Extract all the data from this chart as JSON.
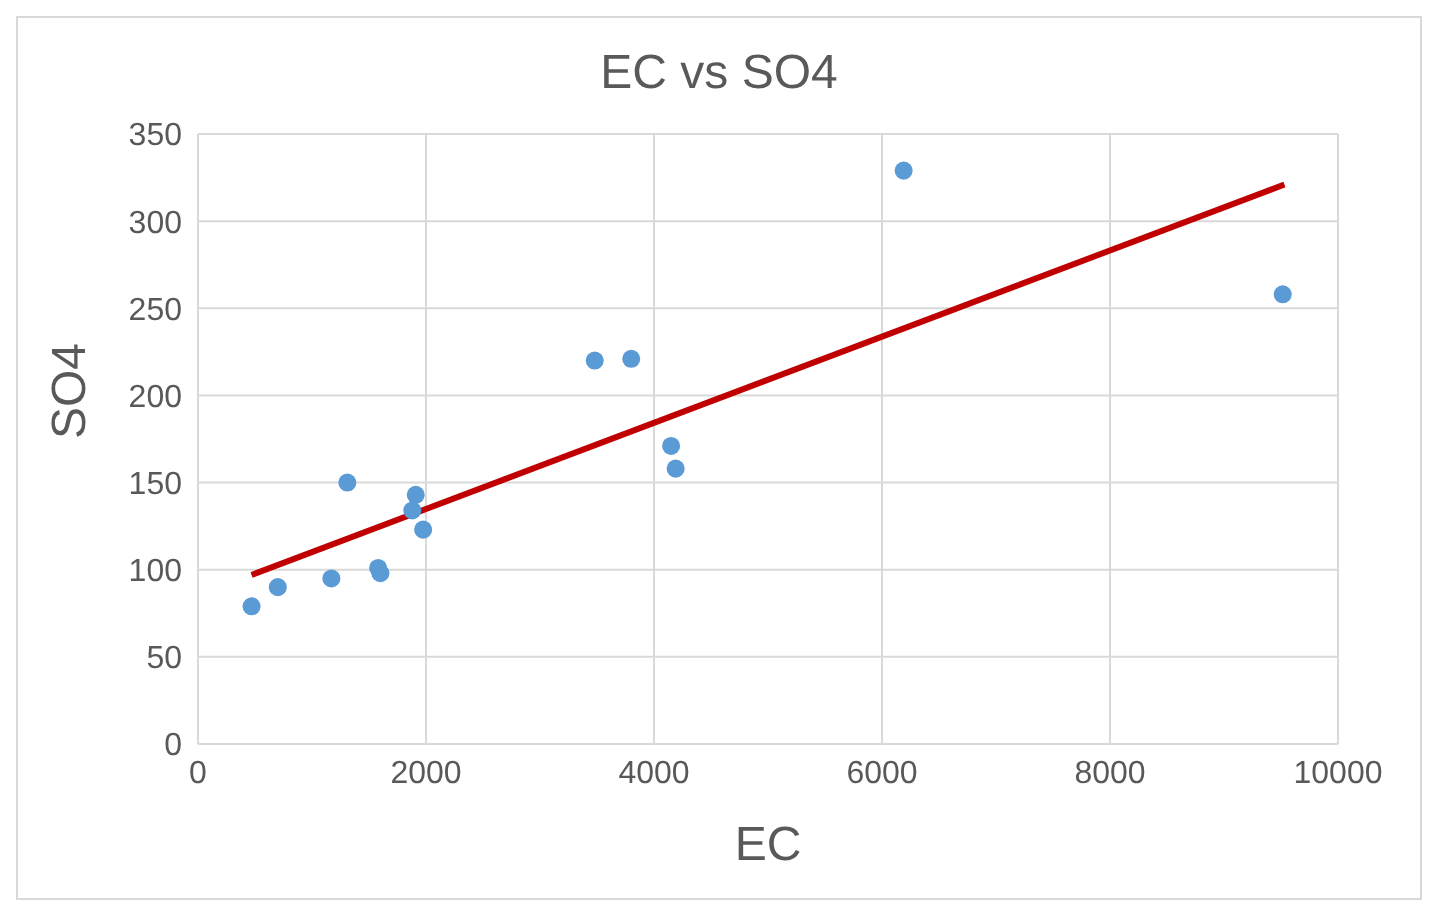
{
  "chart_data": {
    "type": "scatter",
    "title": "EC vs SO4",
    "xlabel": "EC",
    "ylabel": "SO4",
    "xlim": [
      0,
      10000
    ],
    "xticks": [
      0,
      2000,
      4000,
      6000,
      8000,
      10000
    ],
    "ylim": [
      0,
      350
    ],
    "yticks": [
      0,
      50,
      100,
      150,
      200,
      250,
      300,
      350
    ],
    "grid": true,
    "legend": false,
    "series": [
      {
        "marker": "circle",
        "color": "#5b9bd5",
        "x": [
          470,
          700,
          1170,
          1310,
          1580,
          1600,
          1910,
          1880,
          1975,
          3480,
          3800,
          4150,
          4190,
          6190,
          9515
        ],
        "values": [
          79,
          90,
          95,
          150,
          101,
          98,
          143,
          134,
          123,
          220,
          221,
          171,
          158,
          329,
          258
        ]
      },
      {
        "type": "line",
        "marker": "none",
        "color": "#c00000",
        "x": [
          470,
          9530
        ],
        "values": [
          97,
          321
        ]
      }
    ]
  }
}
